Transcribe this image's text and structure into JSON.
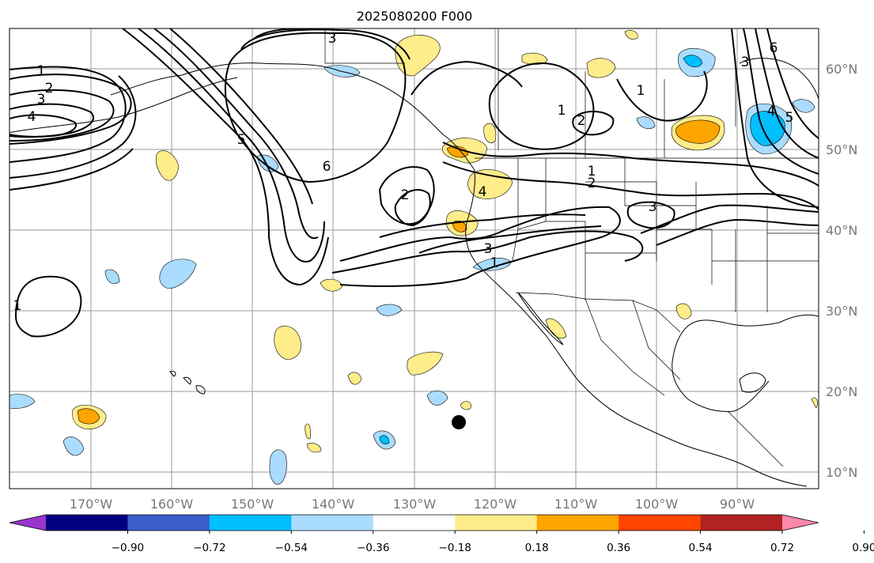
{
  "title": "2025080200 F000",
  "map": {
    "lon_labels": [
      "170°W",
      "160°W",
      "150°W",
      "140°W",
      "130°W",
      "120°W",
      "110°W",
      "100°W",
      "90°W"
    ],
    "lat_labels": [
      "60°N",
      "50°N",
      "40°N",
      "30°N",
      "20°N",
      "10°N"
    ],
    "contour_labels": [
      "1",
      "2",
      "3",
      "4",
      "5",
      "6"
    ]
  },
  "colorbar": {
    "tick_labels": [
      "−0.90",
      "−0.72",
      "−0.54",
      "−0.36",
      "−0.18",
      "0.18",
      "0.36",
      "0.54",
      "0.72",
      "0.90"
    ],
    "colors": [
      "#9933cc",
      "#000080",
      "#3a5fcd",
      "#00bfff",
      "#aadcff",
      "#ffffff",
      "#ffec8b",
      "#ffa500",
      "#ff4500",
      "#b22222",
      "#ff88aa"
    ]
  },
  "colors": {
    "light_blue": "#aadcff",
    "cyan": "#00bfff",
    "light_yellow": "#ffec8b",
    "orange": "#ffa500",
    "grid": "#9a9a9a"
  }
}
